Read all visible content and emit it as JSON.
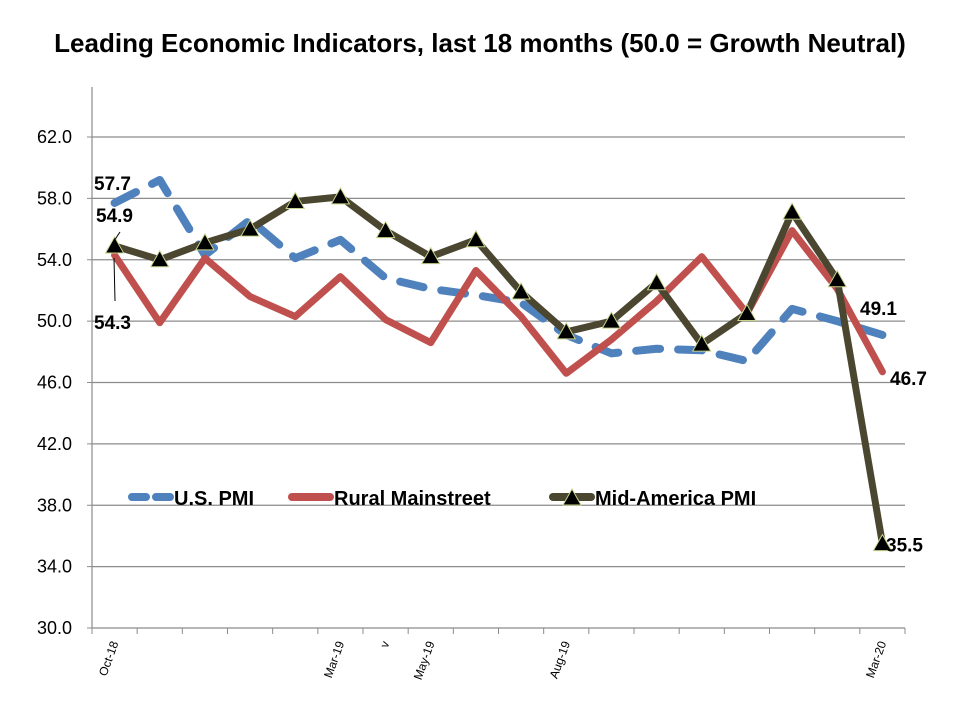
{
  "chart_data": {
    "type": "line",
    "title": "Leading Economic Indicators, last 18 months (50.0 = Growth Neutral)",
    "xlabel": "",
    "ylabel": "",
    "ylim": [
      30.0,
      62.0
    ],
    "yticks": [
      "30.0",
      "34.0",
      "38.0",
      "42.0",
      "46.0",
      "50.0",
      "54.0",
      "58.0",
      "62.0"
    ],
    "grid": true,
    "legend_position": "bottom-inside",
    "x_tick_labels": [
      {
        "index": 0,
        "label": "Oct-18"
      },
      {
        "index": 5,
        "label": "Mar-19"
      },
      {
        "index": 6,
        "label": "v"
      },
      {
        "index": 7,
        "label": "May-19"
      },
      {
        "index": 10,
        "label": "Aug-19"
      },
      {
        "index": 17,
        "label": "Mar-20"
      }
    ],
    "n_points": 18,
    "series": [
      {
        "name": "U.S. PMI",
        "color": "#4f81bd",
        "style": "dashed",
        "values": [
          57.7,
          59.2,
          54.3,
          56.6,
          54.1,
          55.3,
          52.8,
          52.1,
          51.7,
          51.2,
          49.1,
          47.9,
          48.2,
          48.1,
          47.4,
          50.8,
          50.0,
          49.1
        ]
      },
      {
        "name": "Rural Mainstreet",
        "color": "#c0504d",
        "style": "solid",
        "values": [
          54.3,
          49.9,
          54.1,
          51.6,
          50.3,
          52.9,
          50.1,
          48.6,
          53.3,
          50.3,
          46.6,
          48.8,
          51.3,
          54.2,
          50.5,
          55.9,
          52.1,
          46.7
        ]
      },
      {
        "name": "Mid-America PMI",
        "color": "#4a4630",
        "style": "solid-triangle",
        "values": [
          54.9,
          54.0,
          55.1,
          56.0,
          57.8,
          58.1,
          55.9,
          54.2,
          55.3,
          51.9,
          49.3,
          50.0,
          52.5,
          48.5,
          50.5,
          57.1,
          52.7,
          35.5
        ]
      }
    ],
    "data_labels": [
      {
        "series": "U.S. PMI",
        "index": 0,
        "text": "57.7"
      },
      {
        "series": "Mid-America PMI",
        "index": 0,
        "text": "54.9"
      },
      {
        "series": "Rural Mainstreet",
        "index": 0,
        "text": "54.3"
      },
      {
        "series": "U.S. PMI",
        "index": 17,
        "text": "49.1"
      },
      {
        "series": "Rural Mainstreet",
        "index": 17,
        "text": "46.7"
      },
      {
        "series": "Mid-America PMI",
        "index": 17,
        "text": "35.5"
      }
    ]
  }
}
